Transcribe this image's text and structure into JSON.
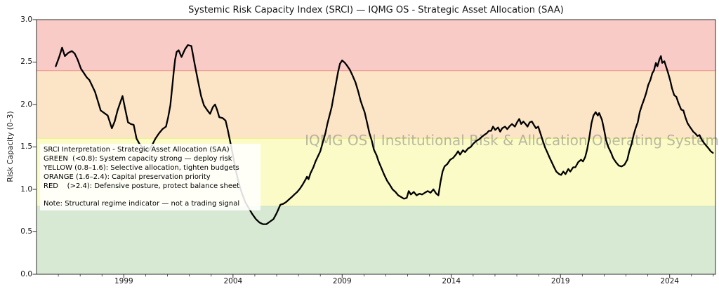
{
  "chart_data": {
    "type": "line",
    "title": "Systemic Risk Capacity Index (SRCI) — IQMG OS - Strategic Asset Allocation (SAA)",
    "xlabel": "",
    "ylabel": "Risk Capacity (0–3)",
    "xlim": [
      1995.0,
      2026.1
    ],
    "ylim": [
      0.0,
      3.0
    ],
    "grid": false,
    "legend": "none",
    "x_tick_years": [
      1999,
      2004,
      2009,
      2014,
      2019,
      2024
    ],
    "x_tick_labels": [
      "1999",
      "2004",
      "2009",
      "2014",
      "2019",
      "2024"
    ],
    "x_minor_tick_year_range": [
      1996,
      2026
    ],
    "y_ticks": [
      0.0,
      0.5,
      1.0,
      1.5,
      2.0,
      2.5,
      3.0
    ],
    "y_tick_labels": [
      "0.0",
      "0.5",
      "1.0",
      "1.5",
      "2.0",
      "2.5",
      "3.0"
    ],
    "bands": [
      {
        "name": "green",
        "label": "GREEN",
        "from": 0.0,
        "to": 0.8,
        "color": "#d8e9d3"
      },
      {
        "name": "yellow",
        "label": "YELLOW",
        "from": 0.8,
        "to": 1.6,
        "color": "#fbfbc8"
      },
      {
        "name": "orange",
        "label": "ORANGE",
        "from": 1.6,
        "to": 2.4,
        "color": "#fbe5c6"
      },
      {
        "name": "red",
        "label": "RED",
        "from": 2.4,
        "to": 3.0,
        "color": "#f9cbc7"
      }
    ],
    "threshold_lines": [
      {
        "value": 0.8,
        "color": "#cfe5c6"
      },
      {
        "value": 1.6,
        "color": "#f0f08e"
      },
      {
        "value": 2.4,
        "color": "#f2a19a"
      }
    ],
    "line_color": "#000000",
    "series": [
      {
        "name": "SRCI",
        "points": [
          [
            1995.88,
            2.45
          ],
          [
            1996.04,
            2.56
          ],
          [
            1996.17,
            2.67
          ],
          [
            1996.3,
            2.57
          ],
          [
            1996.46,
            2.61
          ],
          [
            1996.62,
            2.63
          ],
          [
            1996.75,
            2.6
          ],
          [
            1996.88,
            2.53
          ],
          [
            1997.04,
            2.42
          ],
          [
            1997.17,
            2.37
          ],
          [
            1997.3,
            2.32
          ],
          [
            1997.42,
            2.29
          ],
          [
            1997.55,
            2.22
          ],
          [
            1997.68,
            2.15
          ],
          [
            1997.81,
            2.04
          ],
          [
            1997.94,
            1.93
          ],
          [
            1998.1,
            1.9
          ],
          [
            1998.26,
            1.87
          ],
          [
            1998.45,
            1.72
          ],
          [
            1998.58,
            1.8
          ],
          [
            1998.71,
            1.93
          ],
          [
            1998.83,
            2.02
          ],
          [
            1998.94,
            2.1
          ],
          [
            1999.06,
            1.95
          ],
          [
            1999.19,
            1.79
          ],
          [
            1999.32,
            1.77
          ],
          [
            1999.45,
            1.76
          ],
          [
            1999.58,
            1.6
          ],
          [
            1999.71,
            1.54
          ],
          [
            1999.87,
            1.49
          ],
          [
            2000.03,
            1.45
          ],
          [
            2000.16,
            1.46
          ],
          [
            2000.29,
            1.52
          ],
          [
            2000.45,
            1.6
          ],
          [
            2000.61,
            1.66
          ],
          [
            2000.77,
            1.71
          ],
          [
            2000.93,
            1.74
          ],
          [
            2001.03,
            1.85
          ],
          [
            2001.13,
            1.99
          ],
          [
            2001.23,
            2.24
          ],
          [
            2001.29,
            2.4
          ],
          [
            2001.35,
            2.53
          ],
          [
            2001.42,
            2.62
          ],
          [
            2001.51,
            2.64
          ],
          [
            2001.64,
            2.56
          ],
          [
            2001.8,
            2.65
          ],
          [
            2001.93,
            2.7
          ],
          [
            2002.09,
            2.69
          ],
          [
            2002.25,
            2.47
          ],
          [
            2002.41,
            2.26
          ],
          [
            2002.54,
            2.1
          ],
          [
            2002.67,
            1.99
          ],
          [
            2002.83,
            1.93
          ],
          [
            2002.95,
            1.89
          ],
          [
            2003.08,
            1.97
          ],
          [
            2003.18,
            2.0
          ],
          [
            2003.27,
            1.94
          ],
          [
            2003.37,
            1.85
          ],
          [
            2003.53,
            1.84
          ],
          [
            2003.66,
            1.81
          ],
          [
            2003.76,
            1.7
          ],
          [
            2003.89,
            1.54
          ],
          [
            2004.02,
            1.37
          ],
          [
            2004.14,
            1.21
          ],
          [
            2004.27,
            1.07
          ],
          [
            2004.4,
            0.96
          ],
          [
            2004.56,
            0.85
          ],
          [
            2004.72,
            0.78
          ],
          [
            2004.88,
            0.71
          ],
          [
            2005.05,
            0.65
          ],
          [
            2005.21,
            0.61
          ],
          [
            2005.37,
            0.59
          ],
          [
            2005.53,
            0.59
          ],
          [
            2005.69,
            0.62
          ],
          [
            2005.85,
            0.65
          ],
          [
            2005.98,
            0.71
          ],
          [
            2006.07,
            0.76
          ],
          [
            2006.17,
            0.82
          ],
          [
            2006.3,
            0.83
          ],
          [
            2006.43,
            0.85
          ],
          [
            2006.56,
            0.88
          ],
          [
            2006.69,
            0.91
          ],
          [
            2006.81,
            0.94
          ],
          [
            2006.94,
            0.97
          ],
          [
            2007.07,
            1.01
          ],
          [
            2007.2,
            1.06
          ],
          [
            2007.33,
            1.12
          ],
          [
            2007.39,
            1.15
          ],
          [
            2007.46,
            1.12
          ],
          [
            2007.55,
            1.19
          ],
          [
            2007.68,
            1.26
          ],
          [
            2007.78,
            1.33
          ],
          [
            2007.91,
            1.4
          ],
          [
            2008.0,
            1.45
          ],
          [
            2008.13,
            1.57
          ],
          [
            2008.23,
            1.66
          ],
          [
            2008.32,
            1.77
          ],
          [
            2008.42,
            1.87
          ],
          [
            2008.52,
            1.97
          ],
          [
            2008.61,
            2.1
          ],
          [
            2008.71,
            2.24
          ],
          [
            2008.81,
            2.38
          ],
          [
            2008.9,
            2.48
          ],
          [
            2009.0,
            2.52
          ],
          [
            2009.13,
            2.49
          ],
          [
            2009.22,
            2.46
          ],
          [
            2009.35,
            2.41
          ],
          [
            2009.48,
            2.34
          ],
          [
            2009.61,
            2.26
          ],
          [
            2009.74,
            2.15
          ],
          [
            2009.84,
            2.05
          ],
          [
            2009.93,
            1.98
          ],
          [
            2010.03,
            1.91
          ],
          [
            2010.13,
            1.8
          ],
          [
            2010.25,
            1.66
          ],
          [
            2010.35,
            1.58
          ],
          [
            2010.45,
            1.47
          ],
          [
            2010.58,
            1.4
          ],
          [
            2010.67,
            1.33
          ],
          [
            2010.8,
            1.25
          ],
          [
            2010.93,
            1.17
          ],
          [
            2011.06,
            1.1
          ],
          [
            2011.19,
            1.05
          ],
          [
            2011.31,
            1.0
          ],
          [
            2011.44,
            0.97
          ],
          [
            2011.57,
            0.93
          ],
          [
            2011.7,
            0.91
          ],
          [
            2011.83,
            0.89
          ],
          [
            2011.96,
            0.9
          ],
          [
            2012.05,
            0.98
          ],
          [
            2012.15,
            0.94
          ],
          [
            2012.28,
            0.97
          ],
          [
            2012.41,
            0.93
          ],
          [
            2012.54,
            0.95
          ],
          [
            2012.66,
            0.94
          ],
          [
            2012.79,
            0.96
          ],
          [
            2012.92,
            0.98
          ],
          [
            2013.05,
            0.96
          ],
          [
            2013.18,
            1.0
          ],
          [
            2013.31,
            0.95
          ],
          [
            2013.41,
            0.93
          ],
          [
            2013.5,
            1.08
          ],
          [
            2013.6,
            1.21
          ],
          [
            2013.69,
            1.27
          ],
          [
            2013.82,
            1.3
          ],
          [
            2013.95,
            1.35
          ],
          [
            2014.08,
            1.37
          ],
          [
            2014.21,
            1.41
          ],
          [
            2014.31,
            1.45
          ],
          [
            2014.4,
            1.41
          ],
          [
            2014.53,
            1.46
          ],
          [
            2014.63,
            1.44
          ],
          [
            2014.76,
            1.48
          ],
          [
            2014.89,
            1.5
          ],
          [
            2015.01,
            1.54
          ],
          [
            2015.14,
            1.57
          ],
          [
            2015.27,
            1.59
          ],
          [
            2015.4,
            1.62
          ],
          [
            2015.5,
            1.64
          ],
          [
            2015.62,
            1.66
          ],
          [
            2015.72,
            1.69
          ],
          [
            2015.82,
            1.69
          ],
          [
            2015.91,
            1.74
          ],
          [
            2016.01,
            1.7
          ],
          [
            2016.14,
            1.73
          ],
          [
            2016.24,
            1.68
          ],
          [
            2016.33,
            1.72
          ],
          [
            2016.46,
            1.74
          ],
          [
            2016.56,
            1.71
          ],
          [
            2016.69,
            1.75
          ],
          [
            2016.78,
            1.77
          ],
          [
            2016.91,
            1.74
          ],
          [
            2017.01,
            1.79
          ],
          [
            2017.11,
            1.83
          ],
          [
            2017.2,
            1.77
          ],
          [
            2017.3,
            1.8
          ],
          [
            2017.4,
            1.77
          ],
          [
            2017.49,
            1.74
          ],
          [
            2017.59,
            1.79
          ],
          [
            2017.69,
            1.8
          ],
          [
            2017.78,
            1.76
          ],
          [
            2017.88,
            1.72
          ],
          [
            2017.98,
            1.74
          ],
          [
            2018.07,
            1.67
          ],
          [
            2018.17,
            1.59
          ],
          [
            2018.3,
            1.49
          ],
          [
            2018.39,
            1.44
          ],
          [
            2018.49,
            1.38
          ],
          [
            2018.62,
            1.31
          ],
          [
            2018.71,
            1.26
          ],
          [
            2018.81,
            1.21
          ],
          [
            2018.94,
            1.18
          ],
          [
            2019.03,
            1.17
          ],
          [
            2019.13,
            1.21
          ],
          [
            2019.23,
            1.18
          ],
          [
            2019.36,
            1.24
          ],
          [
            2019.45,
            1.21
          ],
          [
            2019.58,
            1.26
          ],
          [
            2019.68,
            1.26
          ],
          [
            2019.81,
            1.32
          ],
          [
            2019.94,
            1.35
          ],
          [
            2020.03,
            1.33
          ],
          [
            2020.13,
            1.38
          ],
          [
            2020.22,
            1.47
          ],
          [
            2020.32,
            1.61
          ],
          [
            2020.42,
            1.78
          ],
          [
            2020.51,
            1.87
          ],
          [
            2020.61,
            1.91
          ],
          [
            2020.71,
            1.87
          ],
          [
            2020.77,
            1.9
          ],
          [
            2020.9,
            1.82
          ],
          [
            2021.0,
            1.7
          ],
          [
            2021.09,
            1.58
          ],
          [
            2021.19,
            1.5
          ],
          [
            2021.32,
            1.43
          ],
          [
            2021.41,
            1.37
          ],
          [
            2021.54,
            1.32
          ],
          [
            2021.67,
            1.28
          ],
          [
            2021.8,
            1.27
          ],
          [
            2021.93,
            1.29
          ],
          [
            2022.06,
            1.35
          ],
          [
            2022.15,
            1.45
          ],
          [
            2022.25,
            1.53
          ],
          [
            2022.35,
            1.64
          ],
          [
            2022.44,
            1.72
          ],
          [
            2022.54,
            1.79
          ],
          [
            2022.63,
            1.91
          ],
          [
            2022.73,
            1.99
          ],
          [
            2022.83,
            2.06
          ],
          [
            2022.92,
            2.13
          ],
          [
            2023.02,
            2.23
          ],
          [
            2023.12,
            2.29
          ],
          [
            2023.21,
            2.37
          ],
          [
            2023.28,
            2.4
          ],
          [
            2023.37,
            2.49
          ],
          [
            2023.44,
            2.45
          ],
          [
            2023.53,
            2.53
          ],
          [
            2023.6,
            2.57
          ],
          [
            2023.66,
            2.49
          ],
          [
            2023.76,
            2.51
          ],
          [
            2023.82,
            2.46
          ],
          [
            2023.92,
            2.38
          ],
          [
            2024.02,
            2.29
          ],
          [
            2024.11,
            2.19
          ],
          [
            2024.21,
            2.11
          ],
          [
            2024.31,
            2.09
          ],
          [
            2024.4,
            2.02
          ],
          [
            2024.53,
            1.94
          ],
          [
            2024.63,
            1.93
          ],
          [
            2024.72,
            1.85
          ],
          [
            2024.82,
            1.78
          ],
          [
            2024.92,
            1.74
          ],
          [
            2025.08,
            1.68
          ],
          [
            2025.17,
            1.66
          ],
          [
            2025.27,
            1.63
          ],
          [
            2025.37,
            1.64
          ],
          [
            2025.46,
            1.59
          ],
          [
            2025.56,
            1.55
          ],
          [
            2025.69,
            1.51
          ],
          [
            2025.79,
            1.48
          ],
          [
            2025.88,
            1.45
          ],
          [
            2025.98,
            1.43
          ]
        ]
      }
    ]
  },
  "watermark": {
    "text": "IQMG OS | Institutional Risk & Allocation Operating System"
  },
  "interpretation": {
    "lines": [
      "SRCI Interpretation - Strategic Asset Allocation (SAA)",
      "GREEN  (<0.8): System capacity strong — deploy risk",
      "YELLOW (0.8–1.6): Selective allocation, tighten budgets",
      "ORANGE (1.6–2.4): Capital preservation priority",
      "RED    (>2.4): Defensive posture, protect balance sheet",
      "",
      "Note: Structural regime indicator — not a trading signal"
    ]
  }
}
